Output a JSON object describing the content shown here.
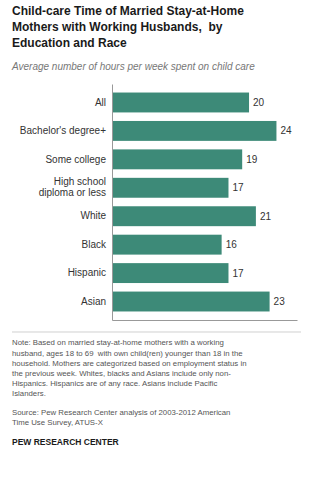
{
  "chart_data": {
    "type": "bar",
    "orientation": "horizontal",
    "title": "Child-care Time of Married Stay-at-Home\nMothers with Working Husbands,  by\nEducation and Race",
    "subtitle": "Average number of hours per week spent on child care",
    "categories": [
      "All",
      "Bachelor's degree+",
      "Some college",
      "High school\ndiploma or less",
      "White",
      "Black",
      "Hispanic",
      "Asian"
    ],
    "values": [
      20,
      24,
      19,
      17,
      21,
      16,
      17,
      23
    ],
    "color": "#3d8a78",
    "xlim": [
      0,
      27
    ],
    "grid": false,
    "data_labels": true,
    "tick_labels": "y",
    "annotations": [
      "Note: Based on married stay-at-home mothers with a working\nhusband, ages 18 to 69  with own child(ren) younger than 18 in the\nhousehold. Mothers are categorized based on employment status in\nthe previous week. Whites, blacks and Asians include only non-\nHispanics. Hispanics are of any race. Asians include Pacific\nIslanders.",
      "Source: Pew Research Center analysis of 2003-2012 American\nTime Use Survey, ATUS-X",
      "PEW RESEARCH CENTER"
    ]
  }
}
